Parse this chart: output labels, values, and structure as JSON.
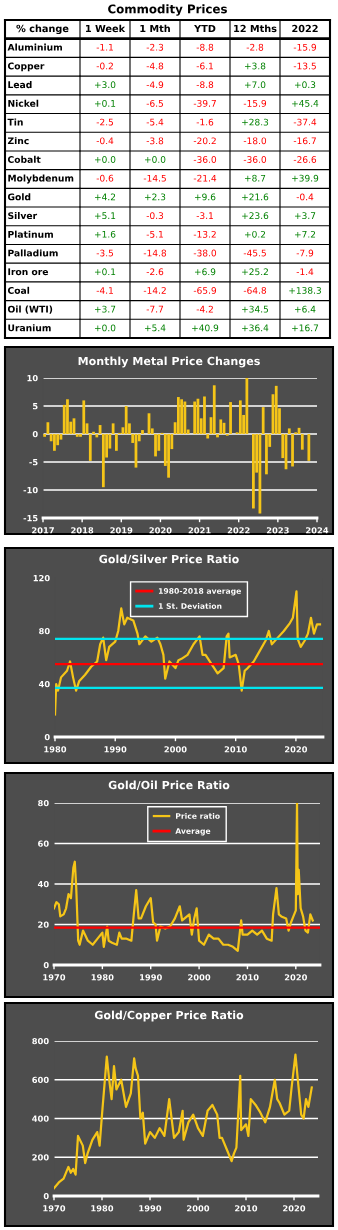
{
  "chart_data": [
    {
      "type": "other",
      "title": "Commodity Prices",
      "ylabel": "% change",
      "categories": [
        "1 Week",
        "1 Mth",
        "YTD",
        "12 Mths",
        "2022"
      ],
      "y_categories": [
        "Aluminium",
        "Copper",
        "Lead",
        "Nickel",
        "Tin",
        "Zinc",
        "Cobalt",
        "Molybdenum",
        "Gold",
        "Silver",
        "Platinum",
        "Palladium",
        "Iron ore",
        "Coal",
        "Oil (WTI)",
        "Uranium"
      ],
      "colors": [
        "#ff0000",
        "#008000"
      ],
      "cell_labels": [
        [
          "-1.1",
          "-2.3",
          "-8.8",
          "-2.8",
          "-15.9"
        ],
        [
          "-0.2",
          "-4.8",
          "-6.1",
          "+3.8",
          "-13.5"
        ],
        [
          "+3.0",
          "-4.9",
          "-8.8",
          "+7.0",
          "+0.3"
        ],
        [
          "+0.1",
          "-6.5",
          "-39.7",
          "-15.9",
          "+45.4"
        ],
        [
          "-2.5",
          "-5.4",
          "-1.6",
          "+28.3",
          "-37.4"
        ],
        [
          "-0.4",
          "-3.8",
          "-20.2",
          "-18.0",
          "-16.7"
        ],
        [
          "+0.0",
          "+0.0",
          "-36.0",
          "-36.0",
          "-26.6"
        ],
        [
          "-0.6",
          "-14.5",
          "-21.4",
          "+8.7",
          "+39.9"
        ],
        [
          "+4.2",
          "+2.3",
          "+9.6",
          "+21.6",
          "-0.4"
        ],
        [
          "+5.1",
          "-0.3",
          "-3.1",
          "+23.6",
          "+3.7"
        ],
        [
          "+1.6",
          "-5.1",
          "-13.2",
          "+0.2",
          "+7.2"
        ],
        [
          "-3.5",
          "-14.8",
          "-38.0",
          "-45.5",
          "-7.9"
        ],
        [
          "+0.1",
          "-2.6",
          "+6.9",
          "+25.2",
          "-1.4"
        ],
        [
          "-4.1",
          "-14.2",
          "-65.9",
          "-64.8",
          "+138.3"
        ],
        [
          "+3.7",
          "-7.7",
          "-4.2",
          "+34.5",
          "+6.4"
        ],
        [
          "+0.0",
          "+5.4",
          "+40.9",
          "+36.4",
          "+16.7"
        ]
      ]
    },
    {
      "type": "bar",
      "title": "Monthly Metal Price Changes",
      "grid": "y",
      "xlim": [
        "2017",
        "2024"
      ],
      "xticks": [
        "2017",
        "2018",
        "2019",
        "2020",
        "2021",
        "2022",
        "2023",
        "2024"
      ],
      "ylim": [
        -15,
        10
      ],
      "yticks": [
        -15,
        -10,
        -5,
        0,
        5,
        10
      ],
      "x": [
        "2017-01",
        "2017-02",
        "2017-03",
        "2017-04",
        "2017-05",
        "2017-06",
        "2017-07",
        "2017-08",
        "2017-09",
        "2017-10",
        "2017-11",
        "2017-12",
        "2018-01",
        "2018-02",
        "2018-03",
        "2018-04",
        "2018-05",
        "2018-06",
        "2018-07",
        "2018-08",
        "2018-09",
        "2018-10",
        "2018-11",
        "2018-12",
        "2019-01",
        "2019-02",
        "2019-03",
        "2019-04",
        "2019-05",
        "2019-06",
        "2019-07",
        "2019-08",
        "2019-09",
        "2019-10",
        "2019-11",
        "2019-12",
        "2020-01",
        "2020-02",
        "2020-03",
        "2020-04",
        "2020-05",
        "2020-06",
        "2020-07",
        "2020-08",
        "2020-09",
        "2020-10",
        "2020-11",
        "2020-12",
        "2021-01",
        "2021-02",
        "2021-03",
        "2021-04",
        "2021-05",
        "2021-06",
        "2021-07",
        "2021-08",
        "2021-09",
        "2021-10",
        "2021-11",
        "2021-12",
        "2022-01",
        "2022-02",
        "2022-03",
        "2022-04",
        "2022-05",
        "2022-06",
        "2022-07",
        "2022-08",
        "2022-09",
        "2022-10",
        "2022-11",
        "2022-12",
        "2023-01",
        "2023-02",
        "2023-03",
        "2023-04",
        "2023-05",
        "2023-06",
        "2023-07",
        "2023-08",
        "2023-09",
        "2023-10"
      ],
      "series": [
        {
          "color": "#f5c518",
          "values": [
            -0.5,
            2.1,
            -1.3,
            -3,
            -2,
            -1,
            5.2,
            6.2,
            2.2,
            2.8,
            -0.5,
            -0.5,
            6,
            1.9,
            -4.8,
            0.4,
            -0.6,
            1.6,
            -9.5,
            -4.2,
            -2.6,
            1.9,
            -3,
            0.2,
            1.2,
            5,
            1.9,
            -1.6,
            -6,
            -1.3,
            0.7,
            0,
            3.7,
            1,
            -4,
            -3,
            0.2,
            -5.7,
            -7.8,
            -2.7,
            2.1,
            6.6,
            6.2,
            5.8,
            0.8,
            0,
            5.8,
            6.3,
            2.8,
            6.7,
            -0.8,
            3,
            8.7,
            -0.6,
            2.6,
            2,
            -0.3,
            5.7,
            0,
            0.3,
            6,
            3.4,
            10,
            0,
            -13.3,
            -6.9,
            -14.2,
            4.8,
            -7.2,
            -2.3,
            7.1,
            8.6,
            4.6,
            -4.3,
            -6.3,
            1,
            -5.8,
            0.3,
            1.1,
            -2.8,
            0,
            -4.8
          ]
        }
      ]
    },
    {
      "type": "line",
      "title": "Gold/Silver Price Ratio",
      "legend": "top",
      "xlim": [
        1980,
        2024.5
      ],
      "xticks": [
        1980,
        1990,
        2000,
        2010,
        2020
      ],
      "ylim": [
        0,
        120
      ],
      "yticks": [
        0,
        40,
        80,
        120
      ],
      "ref_lines": [
        {
          "axis": "y",
          "value": 55,
          "label": "1980-2018 average",
          "color": "#ff0000"
        },
        {
          "axis": "y",
          "value": 74,
          "label": "1 St. Deviation",
          "color": "#00e5ee"
        },
        {
          "axis": "y",
          "value": 37,
          "label": null,
          "color": "#00e5ee"
        }
      ],
      "series": [
        {
          "color": "#f5c518",
          "x": [
            1980,
            1980.2,
            1980.5,
            1981,
            1982,
            1982.5,
            1983,
            1983.5,
            1984,
            1985,
            1986,
            1987,
            1987.5,
            1988,
            1988.5,
            1989,
            1990,
            1990.5,
            1991,
            1991.5,
            1992,
            1993,
            1993.7,
            1994,
            1995,
            1996,
            1997,
            1997.5,
            1998,
            1998.3,
            1999,
            2000,
            2000.5,
            2001,
            2002,
            2003,
            2004,
            2004.5,
            2005,
            2006,
            2007,
            2008,
            2008.5,
            2008.8,
            2009,
            2010,
            2010.5,
            2011,
            2011.5,
            2012,
            2013,
            2014,
            2015,
            2015.5,
            2016,
            2017,
            2018,
            2019,
            2019.5,
            2020.1,
            2020.3,
            2020.8,
            2021.5,
            2022,
            2022.5,
            2023,
            2023.5,
            2024
          ],
          "values": [
            17,
            40,
            35,
            45,
            50,
            57,
            45,
            35,
            42,
            47,
            53,
            57,
            70,
            75,
            58,
            68,
            72,
            80,
            97,
            85,
            90,
            88,
            78,
            70,
            76,
            72,
            75,
            70,
            62,
            44,
            57,
            52,
            58,
            59,
            62,
            70,
            76,
            62,
            62,
            55,
            48,
            52,
            76,
            78,
            60,
            62,
            55,
            35,
            50,
            52,
            57,
            65,
            73,
            80,
            70,
            75,
            80,
            86,
            90,
            110,
            74,
            68,
            73,
            78,
            90,
            78,
            85,
            85
          ]
        }
      ]
    },
    {
      "type": "line",
      "title": "Gold/Oil Price Ratio",
      "legend": "top",
      "grid": "y",
      "xlim": [
        1970,
        2025
      ],
      "xticks": [
        1970,
        1980,
        1990,
        2000,
        2010,
        2020
      ],
      "ylim": [
        0,
        80
      ],
      "yticks": [
        0,
        20,
        40,
        60,
        80
      ],
      "ref_lines": [
        {
          "axis": "y",
          "value": 18.5,
          "label": "Average",
          "color": "#ff0000"
        }
      ],
      "series": [
        {
          "name": "Price ratio",
          "color": "#f5c518",
          "x": [
            1970,
            1970.5,
            1971,
            1971.3,
            1972,
            1972.5,
            1973,
            1973.5,
            1974,
            1974.3,
            1974.6,
            1975,
            1975.3,
            1976,
            1977,
            1978,
            1979,
            1980,
            1980.3,
            1981,
            1981.3,
            1982,
            1983,
            1983.5,
            1984,
            1985,
            1986,
            1986.5,
            1987,
            1987.5,
            1988,
            1989,
            1990,
            1990.5,
            1991,
            1991.3,
            1992,
            1993,
            1994,
            1995,
            1996,
            1996.5,
            1997,
            1998,
            1998.5,
            1999,
            1999.5,
            2000,
            2001,
            2002,
            2003,
            2004,
            2005,
            2006,
            2007,
            2008,
            2008.7,
            2009,
            2010,
            2011,
            2012,
            2013,
            2014,
            2015,
            2015.3,
            2016,
            2016.5,
            2017,
            2018,
            2018.5,
            2019,
            2019.5,
            2020,
            2020.25,
            2020.4,
            2020.6,
            2021,
            2021.5,
            2022,
            2022.5,
            2023,
            2023.5
          ],
          "values": [
            28,
            31,
            30,
            24,
            25,
            28,
            35,
            33,
            48,
            51,
            38,
            12,
            10,
            17,
            12,
            10,
            13,
            16,
            9,
            19,
            12,
            11,
            10,
            16,
            13,
            13,
            12,
            25,
            37,
            23,
            23,
            29,
            33,
            21,
            20,
            12,
            19,
            18,
            19,
            23,
            29,
            22,
            23,
            25,
            15,
            23,
            28,
            12,
            10,
            15,
            13,
            13,
            10,
            10,
            9,
            7,
            22,
            15,
            15,
            17,
            15,
            17,
            13,
            12,
            25,
            38,
            25,
            24,
            23,
            17,
            21,
            24,
            27,
            80,
            35,
            47,
            28,
            24,
            17,
            16,
            25,
            22
          ]
        }
      ]
    },
    {
      "type": "line",
      "title": "Gold/Copper Price Ratio",
      "grid": "y",
      "xlim": [
        1970,
        2025
      ],
      "xticks": [
        1970,
        1980,
        1990,
        2000,
        2010,
        2020
      ],
      "ylim": [
        0,
        800
      ],
      "yticks": [
        0,
        200,
        400,
        600,
        800
      ],
      "series": [
        {
          "color": "#f5c518",
          "x": [
            1970,
            1971,
            1972,
            1973,
            1973.5,
            1974,
            1974.5,
            1975,
            1976,
            1976.5,
            1977,
            1978,
            1979,
            1979.5,
            1980,
            1980.5,
            1981,
            1981.5,
            1982,
            1982.5,
            1983,
            1984,
            1985,
            1986,
            1986.7,
            1987,
            1987.5,
            1988,
            1988.5,
            1989,
            1990,
            1991,
            1992,
            1993,
            1994,
            1995,
            1996,
            1996.8,
            1997,
            1998,
            1999,
            2000,
            2001,
            2002,
            2003,
            2004,
            2004.5,
            2005,
            2006,
            2007,
            2007.5,
            2008,
            2008.8,
            2009,
            2010,
            2010.5,
            2011,
            2012,
            2013,
            2014,
            2015,
            2016,
            2016.5,
            2017,
            2018,
            2019,
            2019.5,
            2020.3,
            2020.8,
            2021.5,
            2022,
            2022.5,
            2023,
            2023.7
          ],
          "values": [
            40,
            70,
            90,
            150,
            120,
            140,
            110,
            310,
            260,
            170,
            220,
            290,
            330,
            260,
            420,
            570,
            720,
            600,
            500,
            670,
            550,
            600,
            460,
            530,
            710,
            660,
            620,
            400,
            430,
            270,
            330,
            300,
            350,
            310,
            500,
            300,
            330,
            440,
            290,
            380,
            420,
            350,
            310,
            440,
            470,
            420,
            300,
            300,
            240,
            180,
            220,
            250,
            620,
            340,
            370,
            310,
            500,
            470,
            430,
            380,
            460,
            600,
            500,
            480,
            420,
            440,
            560,
            730,
            600,
            420,
            400,
            500,
            460,
            560
          ]
        }
      ]
    }
  ]
}
